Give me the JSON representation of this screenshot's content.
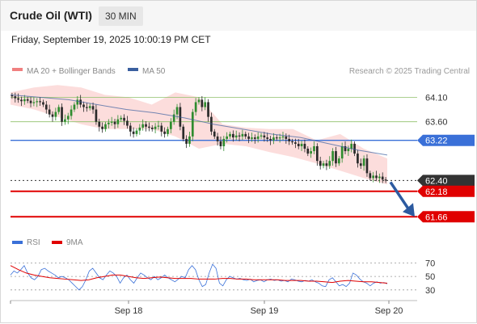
{
  "header": {
    "title": "Crude Oil (WTI)",
    "timeframe": "30 MIN"
  },
  "date_text": "Friday, September 19, 2025 10:00:19 PM CET",
  "colors": {
    "bollinger": "#f08080",
    "ma50": "#3a5f9f",
    "pivot": "#3a70d8",
    "resistance": "#8fc16a",
    "support": "#e00000",
    "current": "#333333",
    "rsi": "#3a70d8",
    "rsi_ma": "#e00000",
    "candle_up": "#2f8c2f",
    "candle_down": "#2a2a2a"
  },
  "chart_data": [
    {
      "type": "candlestick",
      "legend": [
        {
          "label": "MA 20 + Bollinger Bands",
          "color": "#f08080"
        },
        {
          "label": "MA 50",
          "color": "#3a5f9f"
        }
      ],
      "credit": "Research © 2025 Trading Central",
      "x_ticks": [
        "Sep 18",
        "Sep 19",
        "Sep 20"
      ],
      "ylim": [
        61.45,
        64.42
      ],
      "levels": [
        {
          "label": "64.10",
          "value": 64.1,
          "kind": "resistance"
        },
        {
          "label": "63.60",
          "value": 63.6,
          "kind": "resistance"
        },
        {
          "label": "63.22",
          "value": 63.22,
          "kind": "pivot"
        },
        {
          "label": "62.40",
          "value": 62.4,
          "kind": "current"
        },
        {
          "label": "62.18",
          "value": 62.18,
          "kind": "support"
        },
        {
          "label": "61.66",
          "value": 61.66,
          "kind": "support"
        }
      ],
      "close": [
        64.12,
        64.08,
        64.05,
        64.02,
        64.06,
        64.03,
        63.98,
        64.0,
        64.02,
        64.0,
        63.95,
        63.85,
        63.75,
        63.7,
        63.8,
        63.9,
        63.6,
        63.65,
        63.72,
        63.85,
        63.95,
        64.05,
        63.95,
        63.9,
        63.88,
        63.92,
        63.85,
        63.6,
        63.5,
        63.45,
        63.55,
        63.58,
        63.6,
        63.55,
        63.65,
        63.68,
        63.62,
        63.52,
        63.4,
        63.35,
        63.42,
        63.48,
        63.55,
        63.5,
        63.48,
        63.45,
        63.5,
        63.52,
        63.4,
        63.35,
        63.45,
        63.6,
        63.75,
        63.9,
        63.5,
        63.25,
        63.15,
        63.3,
        63.8,
        64.0,
        64.05,
        63.9,
        64.0,
        63.7,
        63.4,
        63.3,
        63.2,
        63.1,
        63.25,
        63.3,
        63.35,
        63.28,
        63.32,
        63.3,
        63.35,
        63.3,
        63.25,
        63.28,
        63.25,
        63.3,
        63.32,
        63.28,
        63.25,
        63.22,
        63.28,
        63.26,
        63.28,
        63.3,
        63.25,
        63.2,
        63.18,
        63.15,
        63.1,
        63.15,
        63.05,
        62.95,
        63.0,
        63.1,
        62.8,
        62.7,
        62.75,
        62.7,
        62.8,
        63.0,
        62.75,
        62.85,
        63.1,
        63.0,
        63.05,
        63.15,
        62.95,
        62.75,
        62.7,
        62.85,
        62.55,
        62.45,
        62.5,
        62.45,
        62.48,
        62.42,
        62.4
      ],
      "ma50": [
        64.15,
        64.1,
        64.05,
        63.95,
        63.85,
        63.78,
        63.68,
        63.55,
        63.45,
        63.35,
        63.28,
        63.15,
        63.02,
        62.92
      ],
      "bb_upper": [
        64.2,
        64.3,
        64.35,
        64.3,
        64.15,
        64.1,
        63.95,
        64.2,
        64.1,
        63.55,
        63.48,
        63.45,
        63.45,
        63.22,
        63.35,
        63.05,
        62.85
      ],
      "bb_lower": [
        63.95,
        63.85,
        63.7,
        63.55,
        63.45,
        63.45,
        63.45,
        63.3,
        63.05,
        63.15,
        63.1,
        62.98,
        62.88,
        62.75,
        62.6,
        62.45,
        62.32
      ],
      "forecast_arrow": {
        "from": 62.4,
        "to": 61.66
      }
    },
    {
      "type": "line",
      "legend": [
        {
          "label": "RSI",
          "color": "#3a70d8"
        },
        {
          "label": "9MA",
          "color": "#e00000"
        }
      ],
      "y_ticks": [
        "70",
        "50",
        "30"
      ],
      "ylim": [
        25,
        80
      ],
      "series": [
        {
          "name": "RSI",
          "values": [
            52,
            58,
            55,
            60,
            66,
            55,
            48,
            45,
            50,
            60,
            62,
            58,
            55,
            52,
            48,
            50,
            48,
            45,
            40,
            35,
            30,
            35,
            45,
            58,
            62,
            55,
            48,
            45,
            52,
            58,
            55,
            50,
            40,
            48,
            52,
            45,
            40,
            48,
            55,
            52,
            48,
            45,
            50,
            45,
            48,
            52,
            48,
            45,
            42,
            46,
            50,
            48,
            60,
            66,
            60,
            45,
            35,
            38,
            55,
            68,
            62,
            40,
            36,
            45,
            50,
            48,
            46,
            47,
            45,
            44,
            46,
            42,
            44,
            45,
            42,
            45,
            46,
            44,
            45,
            43,
            44,
            42,
            46,
            45,
            43,
            42,
            44,
            43,
            45,
            42,
            40,
            36,
            35,
            45,
            48,
            42,
            36,
            38,
            35,
            40,
            55,
            52,
            46,
            42,
            40,
            36,
            40,
            42,
            40,
            41,
            39
          ]
        },
        {
          "name": "9MA",
          "values": [
            66,
            60,
            55,
            52,
            50,
            48,
            47,
            46,
            45,
            44,
            45,
            48,
            50,
            52,
            52,
            50,
            48,
            47,
            48,
            49,
            48,
            47,
            47,
            47,
            46,
            46,
            46,
            47,
            47,
            46,
            46,
            45,
            45,
            45,
            45,
            44,
            44,
            44,
            43,
            43,
            42,
            41,
            43,
            44,
            43,
            42,
            42,
            41,
            40
          ]
        }
      ]
    }
  ]
}
